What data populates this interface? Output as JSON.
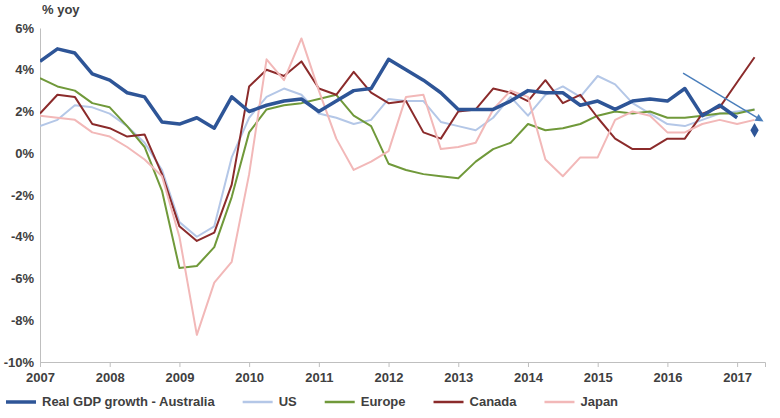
{
  "chart_data": {
    "type": "line",
    "ylabel": "% yoy",
    "x": [
      2007,
      2007.25,
      2007.5,
      2007.75,
      2008,
      2008.25,
      2008.5,
      2008.75,
      2009,
      2009.25,
      2009.5,
      2009.75,
      2010,
      2010.25,
      2010.5,
      2010.75,
      2011,
      2011.25,
      2011.5,
      2011.75,
      2012,
      2012.25,
      2012.5,
      2012.75,
      2013,
      2013.25,
      2013.5,
      2013.75,
      2014,
      2014.25,
      2014.5,
      2014.75,
      2015,
      2015.25,
      2015.5,
      2015.75,
      2016,
      2016.25,
      2016.5,
      2016.75,
      2017,
      2017.25
    ],
    "xlim": [
      2007,
      2017.4
    ],
    "xticks": [
      2007,
      2008,
      2009,
      2010,
      2011,
      2012,
      2013,
      2014,
      2015,
      2016,
      2017
    ],
    "ylim": [
      -10,
      6
    ],
    "yticks": [
      {
        "value": -10,
        "label": "-10%"
      },
      {
        "value": -8,
        "label": "-8%"
      },
      {
        "value": -6,
        "label": "-6%"
      },
      {
        "value": -4,
        "label": "-4%"
      },
      {
        "value": -2,
        "label": "-2%"
      },
      {
        "value": 0,
        "label": "0%"
      },
      {
        "value": 2,
        "label": "2%"
      },
      {
        "value": 4,
        "label": "4%"
      },
      {
        "value": 6,
        "label": "6%"
      }
    ],
    "grid": false,
    "legend": "bottom",
    "series": [
      {
        "name": "Real GDP growth - Australia",
        "color": "#2e5597",
        "values": [
          4.4,
          5.0,
          4.8,
          3.8,
          3.5,
          2.9,
          2.7,
          1.5,
          1.4,
          1.7,
          1.2,
          2.7,
          2.0,
          2.3,
          2.5,
          2.6,
          2.0,
          2.5,
          3.0,
          3.1,
          4.5,
          4.0,
          3.5,
          2.9,
          2.1,
          2.1,
          2.1,
          2.5,
          3.0,
          2.9,
          2.9,
          2.3,
          2.5,
          2.1,
          2.5,
          2.6,
          2.5,
          3.1,
          1.8,
          2.3,
          1.7,
          null
        ],
        "forecast": {
          "x": 2017.25,
          "value": 1.1,
          "marker": "diamond"
        }
      },
      {
        "name": "US",
        "color": "#b4c7e7",
        "values": [
          1.3,
          1.6,
          2.3,
          2.2,
          1.9,
          1.3,
          0.5,
          -0.8,
          -3.3,
          -4.0,
          -3.5,
          -0.2,
          1.7,
          2.7,
          3.1,
          2.8,
          1.9,
          1.7,
          1.4,
          1.6,
          2.6,
          2.5,
          2.5,
          1.5,
          1.3,
          1.1,
          1.7,
          2.7,
          1.8,
          2.8,
          3.2,
          2.7,
          3.7,
          3.3,
          2.4,
          1.9,
          1.4,
          1.3,
          1.6,
          1.9,
          2.0,
          2.1
        ]
      },
      {
        "name": "Europe",
        "color": "#70993a",
        "values": [
          3.6,
          3.2,
          3.0,
          2.4,
          2.2,
          1.3,
          0.3,
          -1.8,
          -5.5,
          -5.4,
          -4.5,
          -2.1,
          1.0,
          2.1,
          2.3,
          2.4,
          2.6,
          2.8,
          1.8,
          1.3,
          -0.5,
          -0.8,
          -1.0,
          -1.1,
          -1.2,
          -0.4,
          0.2,
          0.5,
          1.4,
          1.1,
          1.2,
          1.4,
          1.8,
          2.0,
          1.9,
          2.0,
          1.7,
          1.7,
          1.8,
          1.9,
          1.9,
          2.1
        ]
      },
      {
        "name": "Canada",
        "color": "#8b2b2b",
        "values": [
          1.9,
          2.8,
          2.7,
          1.4,
          1.2,
          0.8,
          0.9,
          -1.0,
          -3.5,
          -4.2,
          -3.8,
          -1.5,
          3.2,
          4.0,
          3.7,
          4.4,
          3.1,
          2.8,
          3.9,
          2.9,
          2.4,
          2.5,
          1.0,
          0.7,
          2.0,
          2.1,
          3.1,
          2.9,
          2.5,
          3.5,
          2.4,
          2.8,
          1.7,
          0.7,
          0.2,
          0.2,
          0.7,
          0.7,
          1.9,
          2.2,
          3.4,
          4.6
        ]
      },
      {
        "name": "Japan",
        "color": "#f2b8b8",
        "values": [
          1.8,
          1.7,
          1.6,
          1.0,
          0.8,
          0.3,
          -0.3,
          -1.1,
          -4.0,
          -8.7,
          -6.2,
          -5.2,
          -1.0,
          4.5,
          3.5,
          5.5,
          3.0,
          0.7,
          -0.8,
          -0.4,
          0.1,
          2.7,
          2.8,
          0.2,
          0.3,
          0.5,
          2.1,
          3.0,
          2.7,
          -0.3,
          -1.1,
          -0.2,
          -0.2,
          1.6,
          2.0,
          1.8,
          1.0,
          1.0,
          1.4,
          1.6,
          1.4,
          1.6
        ]
      }
    ]
  }
}
